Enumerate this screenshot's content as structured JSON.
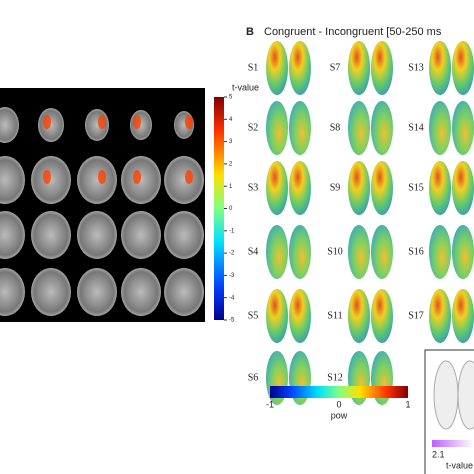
{
  "left_panel": {
    "colorbar_label": "t-value",
    "colorbar_ticks": [
      5,
      4,
      3,
      2,
      1,
      0,
      -1,
      -2,
      -3,
      -4,
      -5
    ]
  },
  "right_panel": {
    "panel_label": "B",
    "title": "Congruent - Incongruent [50-250 ms",
    "subjects": [
      "S1",
      "S2",
      "S3",
      "S4",
      "S5",
      "S6",
      "S7",
      "S8",
      "S9",
      "S10",
      "S11",
      "S12",
      "S13",
      "S14",
      "S15",
      "S16",
      "S17"
    ],
    "colorbar_ticks": [
      -1,
      0,
      1
    ],
    "colorbar_label": "pow",
    "inset": {
      "min_label": "2.1",
      "label": "t-value"
    }
  }
}
